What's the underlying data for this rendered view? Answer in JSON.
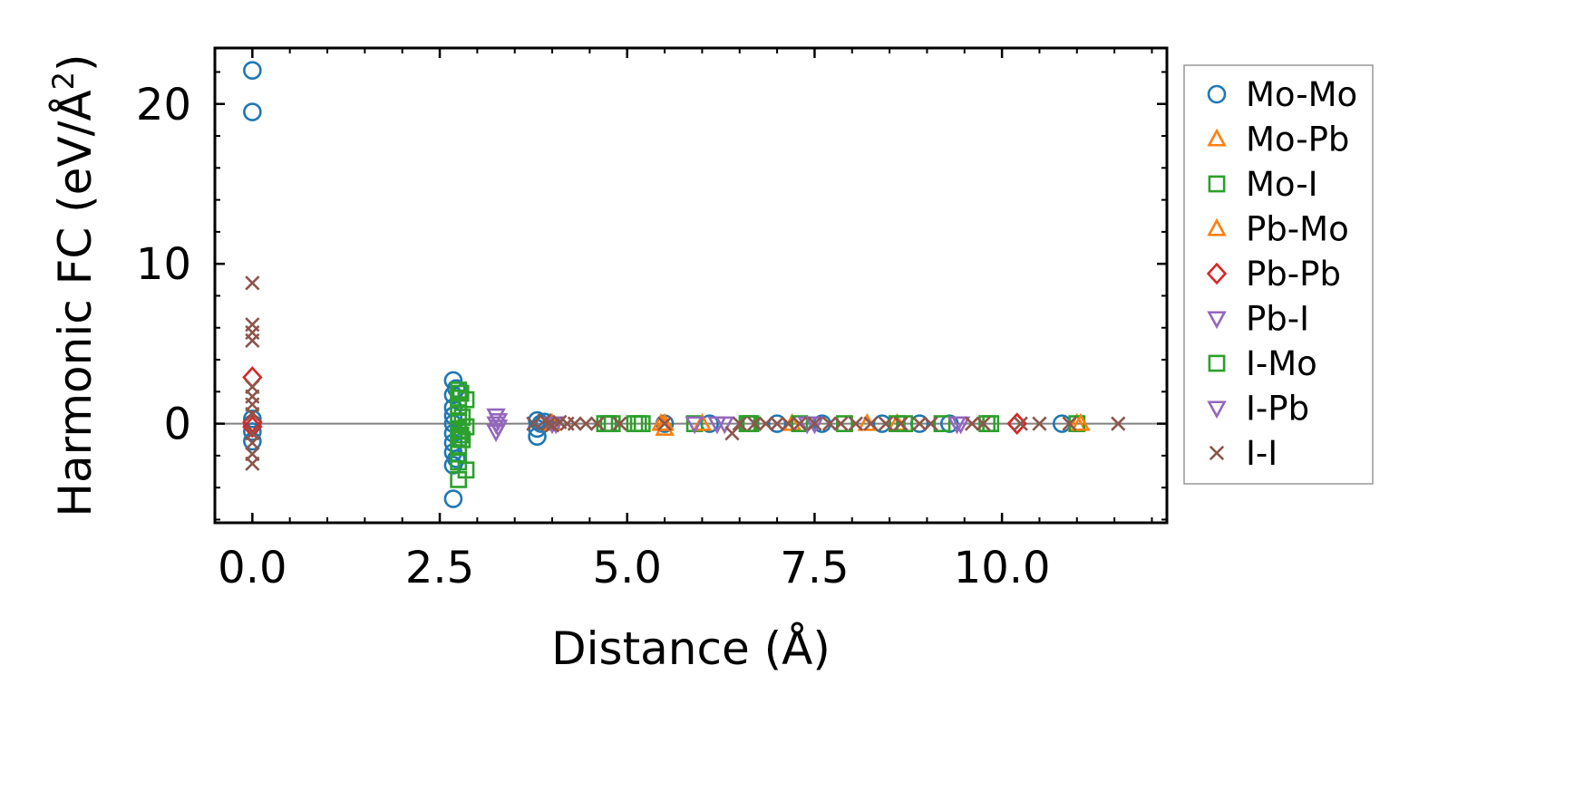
{
  "chart_data": {
    "type": "scatter",
    "xlabel": "Distance (Å)",
    "ylabel": "Harmonic FC (eV/Å²)",
    "ylabel_parts": {
      "main": "Harmonic FC (eV/Å",
      "sup": "2",
      "tail": ")"
    },
    "xlim": [
      -0.5,
      12.2
    ],
    "ylim": [
      -6.2,
      23.5
    ],
    "x_ticks": [
      0.0,
      2.5,
      5.0,
      7.5,
      10.0
    ],
    "x_tick_labels": [
      "0.0",
      "2.5",
      "5.0",
      "7.5",
      "10.0"
    ],
    "y_ticks": [
      0,
      10,
      20
    ],
    "y_tick_labels": [
      "0",
      "10",
      "20"
    ],
    "zero_line": true,
    "grid": false,
    "legend_position": "outside-right",
    "series": [
      {
        "name": "Mo-Mo",
        "marker": "circle",
        "color": "#1f77b4",
        "points": [
          [
            0.0,
            22.1
          ],
          [
            0.0,
            19.5
          ],
          [
            0.0,
            0.3
          ],
          [
            0.0,
            0.0
          ],
          [
            0.0,
            -0.5
          ],
          [
            0.0,
            -1.1
          ],
          [
            2.68,
            2.7
          ],
          [
            2.68,
            1.8
          ],
          [
            2.68,
            1.0
          ],
          [
            2.68,
            0.5
          ],
          [
            2.68,
            0.0
          ],
          [
            2.68,
            -0.6
          ],
          [
            2.68,
            -1.2
          ],
          [
            2.68,
            -1.8
          ],
          [
            2.68,
            -2.6
          ],
          [
            2.68,
            -4.7
          ],
          [
            2.72,
            2.2
          ],
          [
            2.72,
            -2.2
          ],
          [
            3.8,
            0.2
          ],
          [
            3.8,
            -0.3
          ],
          [
            3.8,
            -0.8
          ],
          [
            3.85,
            0.0
          ],
          [
            3.9,
            0.1
          ],
          [
            5.5,
            0.0
          ],
          [
            6.1,
            0.0
          ],
          [
            7.0,
            0.0
          ],
          [
            7.6,
            0.0
          ],
          [
            8.4,
            0.0
          ],
          [
            8.9,
            0.0
          ],
          [
            9.3,
            0.0
          ],
          [
            10.8,
            0.0
          ]
        ]
      },
      {
        "name": "Mo-Pb",
        "marker": "triangle-up",
        "color": "#ff7f0e",
        "points": [
          [
            4.0,
            0.0
          ],
          [
            5.45,
            0.0
          ],
          [
            5.5,
            -0.3
          ],
          [
            7.2,
            0.0
          ],
          [
            8.6,
            0.0
          ],
          [
            11.0,
            0.0
          ]
        ]
      },
      {
        "name": "Mo-I",
        "marker": "square",
        "color": "#2ca02c",
        "points": [
          [
            2.75,
            2.1
          ],
          [
            2.75,
            1.6
          ],
          [
            2.75,
            1.1
          ],
          [
            2.75,
            0.6
          ],
          [
            2.75,
            0.1
          ],
          [
            2.75,
            -0.4
          ],
          [
            2.75,
            -0.9
          ],
          [
            2.75,
            -1.4
          ],
          [
            2.75,
            -1.9
          ],
          [
            2.75,
            -2.4
          ],
          [
            2.75,
            -3.5
          ],
          [
            2.8,
            -1.0
          ],
          [
            2.8,
            0.4
          ],
          [
            2.85,
            -2.9
          ],
          [
            2.85,
            1.5
          ],
          [
            2.85,
            -0.2
          ],
          [
            4.75,
            0.0
          ],
          [
            4.8,
            0.0
          ],
          [
            5.1,
            0.0
          ],
          [
            5.2,
            0.0
          ],
          [
            5.9,
            0.0
          ],
          [
            6.6,
            0.0
          ],
          [
            6.65,
            0.0
          ],
          [
            7.3,
            0.0
          ],
          [
            7.9,
            0.0
          ],
          [
            8.7,
            0.0
          ],
          [
            9.2,
            0.0
          ],
          [
            9.8,
            0.0
          ],
          [
            11.0,
            0.0
          ]
        ]
      },
      {
        "name": "Pb-Mo",
        "marker": "triangle-up",
        "color": "#ff7f0e",
        "points": [
          [
            5.5,
            0.0
          ],
          [
            6.0,
            0.0
          ],
          [
            8.2,
            0.0
          ],
          [
            11.05,
            0.0
          ]
        ]
      },
      {
        "name": "Pb-Pb",
        "marker": "diamond",
        "color": "#d62728",
        "points": [
          [
            0.0,
            2.9
          ],
          [
            0.0,
            0.1
          ],
          [
            0.0,
            -0.2
          ],
          [
            10.2,
            0.0
          ],
          [
            10.2,
            0.0
          ]
        ]
      },
      {
        "name": "Pb-I",
        "marker": "triangle-down",
        "color": "#9467bd",
        "points": [
          [
            3.25,
            0.5
          ],
          [
            3.25,
            0.0
          ],
          [
            3.25,
            -0.5
          ],
          [
            4.05,
            0.0
          ],
          [
            5.9,
            0.0
          ],
          [
            6.3,
            0.0
          ],
          [
            7.5,
            0.0
          ],
          [
            9.4,
            0.0
          ]
        ]
      },
      {
        "name": "I-Mo",
        "marker": "square",
        "color": "#2ca02c",
        "points": [
          [
            2.78,
            1.9
          ],
          [
            2.78,
            -0.7
          ],
          [
            4.7,
            0.0
          ],
          [
            5.15,
            0.0
          ],
          [
            6.62,
            0.0
          ],
          [
            8.6,
            0.0
          ],
          [
            9.85,
            0.0
          ]
        ]
      },
      {
        "name": "I-Pb",
        "marker": "triangle-down",
        "color": "#9467bd",
        "points": [
          [
            3.28,
            0.2
          ],
          [
            3.28,
            -0.2
          ],
          [
            4.0,
            0.0
          ],
          [
            6.2,
            0.0
          ],
          [
            7.4,
            0.0
          ],
          [
            9.45,
            0.0
          ]
        ]
      },
      {
        "name": "I-I",
        "marker": "x",
        "color": "#8c564b",
        "points": [
          [
            0.0,
            8.8
          ],
          [
            0.0,
            6.2
          ],
          [
            0.0,
            5.7
          ],
          [
            0.0,
            5.2
          ],
          [
            0.0,
            2.3
          ],
          [
            0.0,
            1.7
          ],
          [
            0.0,
            1.2
          ],
          [
            0.0,
            0.6
          ],
          [
            0.0,
            -0.6
          ],
          [
            0.0,
            -1.2
          ],
          [
            0.0,
            -1.9
          ],
          [
            0.0,
            -2.5
          ],
          [
            3.75,
            0.0
          ],
          [
            3.9,
            0.2
          ],
          [
            3.95,
            0.0
          ],
          [
            4.0,
            -0.1
          ],
          [
            4.1,
            0.1
          ],
          [
            4.2,
            0.0
          ],
          [
            4.3,
            0.0
          ],
          [
            4.45,
            0.0
          ],
          [
            4.6,
            0.0
          ],
          [
            4.9,
            0.0
          ],
          [
            5.5,
            0.0
          ],
          [
            6.4,
            -0.6
          ],
          [
            6.5,
            0.0
          ],
          [
            6.7,
            0.0
          ],
          [
            6.85,
            0.0
          ],
          [
            7.0,
            0.0
          ],
          [
            7.15,
            0.0
          ],
          [
            7.3,
            0.0
          ],
          [
            7.5,
            0.0
          ],
          [
            7.7,
            0.0
          ],
          [
            7.85,
            0.0
          ],
          [
            8.05,
            0.0
          ],
          [
            8.25,
            0.0
          ],
          [
            8.45,
            0.0
          ],
          [
            8.65,
            0.0
          ],
          [
            8.9,
            0.0
          ],
          [
            9.05,
            0.0
          ],
          [
            9.6,
            0.0
          ],
          [
            9.75,
            0.0
          ],
          [
            10.25,
            0.0
          ],
          [
            10.5,
            0.0
          ],
          [
            10.9,
            0.0
          ],
          [
            11.55,
            0.0
          ]
        ]
      }
    ]
  }
}
